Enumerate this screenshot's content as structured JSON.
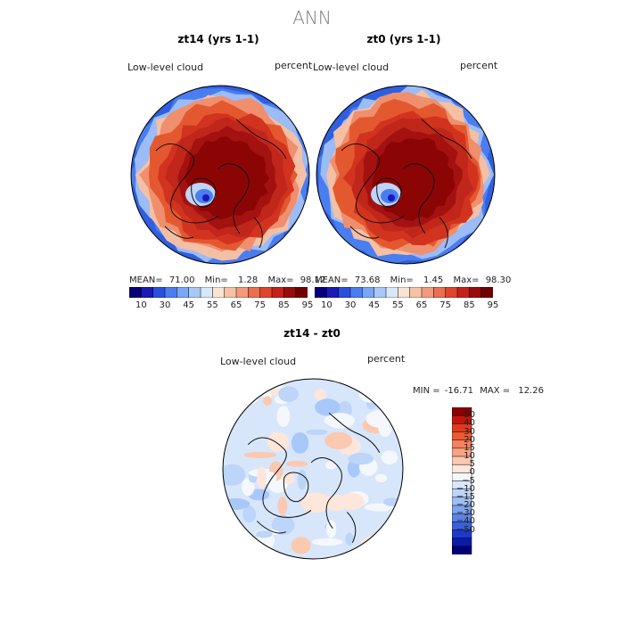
{
  "page_title": "ANN",
  "panels": [
    {
      "title": "zt14 (yrs 1-1)",
      "variable": "Low-level cloud",
      "units": "percent",
      "mean_label": "MEAN=",
      "mean": "71.00",
      "min_label": "Min=",
      "min": "1.28",
      "max_label": "Max=",
      "max": "98.12",
      "tone": "warm"
    },
    {
      "title": "zt0 (yrs 1-1)",
      "variable": "Low-level cloud",
      "units": "percent",
      "mean_label": "MEAN=",
      "mean": "73.68",
      "min_label": "Min=",
      "min": "1.45",
      "max_label": "Max=",
      "max": "98.30",
      "tone": "warm"
    }
  ],
  "horizontal_colorbar": {
    "colors": [
      "#06007a",
      "#1a1ab8",
      "#2a4fe0",
      "#4a7df0",
      "#7aa6f7",
      "#a8c8fa",
      "#d8e8fb",
      "#fbe3d3",
      "#f8c1a4",
      "#f39a7c",
      "#ec6f4f",
      "#e0452b",
      "#c7201a",
      "#9a0b0b",
      "#700000"
    ],
    "tick_labels": [
      "10",
      "30",
      "45",
      "55",
      "65",
      "75",
      "85",
      "95"
    ]
  },
  "diff_panel": {
    "title": "zt14 - zt0",
    "variable": "Low-level cloud",
    "units": "percent",
    "min_label": "MIN =",
    "min": "-16.71",
    "max_label": "MAX =",
    "max": "12.26",
    "tone": "diff"
  },
  "vertical_colorbar": {
    "colors": [
      "#8c0000",
      "#c4140f",
      "#e03b1e",
      "#ee5a32",
      "#f4825d",
      "#f7a384",
      "#fbc9b0",
      "#fde6da",
      "#f4f7fc",
      "#d7e6fb",
      "#bcd5f8",
      "#9fbff3",
      "#7ea3ee",
      "#5b82e6",
      "#3a5fdc",
      "#1c39c9",
      "#0a1ba8",
      "#000078"
    ],
    "tick_labels": [
      "50",
      "40",
      "30",
      "20",
      "15",
      "10",
      "5",
      "0",
      "−5",
      "−10",
      "−15",
      "−20",
      "−30",
      "−40",
      "−50"
    ]
  }
}
